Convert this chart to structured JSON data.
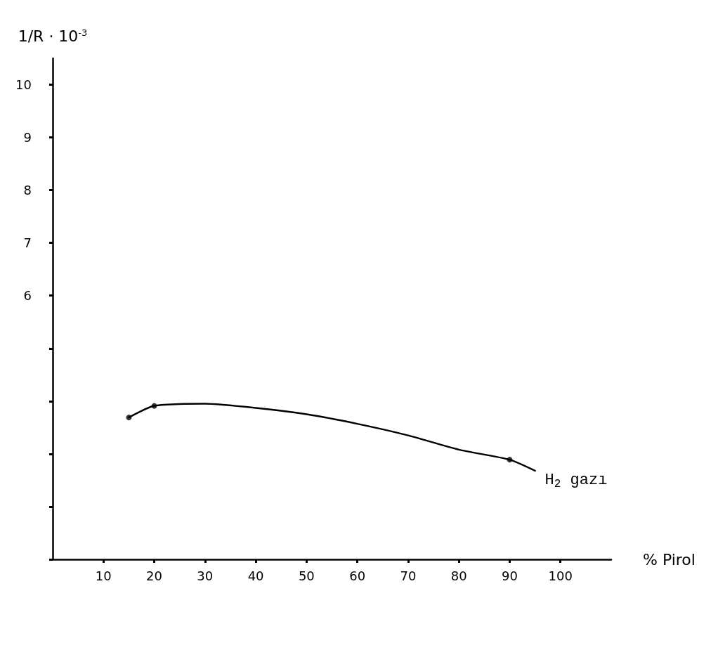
{
  "chart_data": {
    "type": "line",
    "xlabel": "% Pirol",
    "ylabel": "1/R · 10$^{-3}$",
    "xlim": [
      0,
      110
    ],
    "xticks": [
      10,
      20,
      30,
      40,
      50,
      60,
      70,
      80,
      90,
      100
    ],
    "ylim": [
      1,
      10.5
    ],
    "yticks": [
      {
        "value": 1,
        "label": null
      },
      {
        "value": 2,
        "label": null
      },
      {
        "value": 3,
        "label": null
      },
      {
        "value": 4,
        "label": null
      },
      {
        "value": 5,
        "label": null
      },
      6,
      7,
      8,
      9,
      10
    ],
    "grid": false,
    "legend": false,
    "series": [
      {
        "name": "H$_{2}$ gazı",
        "color": "#000000",
        "marker": "none",
        "x": [
          15,
          20,
          30,
          40,
          50,
          60,
          70,
          80,
          90,
          95
        ],
        "values": [
          3.69,
          3.91,
          3.95,
          3.87,
          3.75,
          3.57,
          3.35,
          3.08,
          2.89,
          2.68
        ]
      },
      {
        "type": "scatter",
        "color": "#000000",
        "marker": "circle",
        "x": [
          15,
          20,
          90
        ],
        "values": [
          3.69,
          3.91,
          2.89
        ]
      }
    ]
  }
}
